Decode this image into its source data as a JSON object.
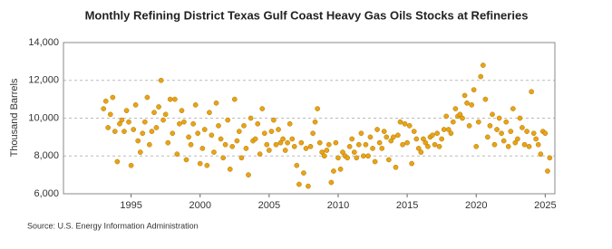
{
  "chart_data": {
    "type": "scatter",
    "title": "Monthly Refining District Texas Gulf Coast Heavy Gas Oils Stocks at Refineries",
    "y_label": "Thousand Barrels",
    "source": "Source: U.S. Energy Information Administration",
    "color": "#e8a317",
    "grid": true,
    "xlim": [
      1990.1,
      2025.7
    ],
    "xticks": [
      1995,
      2000,
      2005,
      2010,
      2015,
      2020,
      2025
    ],
    "ylim": [
      6000,
      14000
    ],
    "yticks": [
      {
        "value": 6000,
        "label": "6,000"
      },
      {
        "value": 8000,
        "label": "8,000"
      },
      {
        "value": 10000,
        "label": "10,000"
      },
      {
        "value": 12000,
        "label": "12,000"
      },
      {
        "value": 14000,
        "label": "14,000"
      }
    ],
    "x": [
      1993.0,
      1993.17,
      1993.33,
      1993.5,
      1993.67,
      1993.83,
      1994.0,
      1994.17,
      1994.33,
      1994.5,
      1994.67,
      1994.83,
      1995.0,
      1995.17,
      1995.33,
      1995.5,
      1995.67,
      1995.83,
      1996.0,
      1996.17,
      1996.33,
      1996.5,
      1996.67,
      1996.83,
      1997.0,
      1997.17,
      1997.33,
      1997.5,
      1997.67,
      1997.83,
      1998.0,
      1998.17,
      1998.33,
      1998.5,
      1998.67,
      1998.83,
      1999.0,
      1999.17,
      1999.33,
      1999.5,
      1999.67,
      1999.83,
      2000.0,
      2000.17,
      2000.33,
      2000.5,
      2000.67,
      2000.83,
      2001.0,
      2001.17,
      2001.33,
      2001.5,
      2001.67,
      2001.83,
      2002.0,
      2002.17,
      2002.33,
      2002.5,
      2002.67,
      2002.83,
      2003.0,
      2003.17,
      2003.33,
      2003.5,
      2003.67,
      2003.83,
      2004.0,
      2004.17,
      2004.33,
      2004.5,
      2004.67,
      2004.83,
      2005.0,
      2005.17,
      2005.33,
      2005.5,
      2005.67,
      2005.83,
      2006.0,
      2006.17,
      2006.33,
      2006.5,
      2006.67,
      2006.83,
      2007.0,
      2007.17,
      2007.33,
      2007.5,
      2007.67,
      2007.83,
      2008.0,
      2008.17,
      2008.33,
      2008.5,
      2008.67,
      2008.83,
      2009.0,
      2009.17,
      2009.33,
      2009.5,
      2009.67,
      2009.83,
      2010.0,
      2010.17,
      2010.33,
      2010.5,
      2010.67,
      2010.83,
      2011.0,
      2011.17,
      2011.33,
      2011.5,
      2011.67,
      2011.83,
      2012.0,
      2012.17,
      2012.33,
      2012.5,
      2012.67,
      2012.83,
      2013.0,
      2013.17,
      2013.33,
      2013.5,
      2013.67,
      2013.83,
      2014.0,
      2014.17,
      2014.33,
      2014.5,
      2014.67,
      2014.83,
      2015.0,
      2015.17,
      2015.33,
      2015.5,
      2015.67,
      2015.83,
      2016.0,
      2016.17,
      2016.33,
      2016.5,
      2016.67,
      2016.83,
      2017.0,
      2017.17,
      2017.33,
      2017.5,
      2017.67,
      2017.83,
      2018.0,
      2018.17,
      2018.33,
      2018.5,
      2018.67,
      2018.83,
      2019.0,
      2019.17,
      2019.33,
      2019.5,
      2019.67,
      2019.83,
      2020.0,
      2020.17,
      2020.33,
      2020.5,
      2020.67,
      2020.83,
      2021.0,
      2021.17,
      2021.33,
      2021.5,
      2021.67,
      2021.83,
      2022.0,
      2022.17,
      2022.33,
      2022.5,
      2022.67,
      2022.83,
      2023.0,
      2023.17,
      2023.33,
      2023.5,
      2023.67,
      2023.83,
      2024.0,
      2024.17,
      2024.33,
      2024.5,
      2024.67,
      2024.83,
      2025.0,
      2025.17,
      2025.33
    ],
    "values": [
      10500,
      10900,
      9500,
      10200,
      11100,
      9300,
      7700,
      9700,
      9900,
      9300,
      10400,
      9800,
      7500,
      9400,
      10700,
      8800,
      8200,
      9200,
      9800,
      11100,
      8600,
      9300,
      10300,
      9500,
      10600,
      12000,
      9900,
      10200,
      8700,
      11000,
      9200,
      11000,
      8100,
      9700,
      10400,
      9800,
      7800,
      9000,
      8600,
      9700,
      10700,
      9200,
      7600,
      8400,
      9400,
      7500,
      10300,
      9100,
      8200,
      10800,
      9600,
      8900,
      7900,
      8600,
      9900,
      7300,
      8500,
      11000,
      8800,
      9300,
      7900,
      9600,
      8400,
      7000,
      10000,
      8800,
      8900,
      9700,
      8100,
      10500,
      9200,
      8600,
      8300,
      9300,
      9900,
      8600,
      9400,
      8700,
      8900,
      8300,
      8700,
      9700,
      8900,
      8500,
      7500,
      6500,
      8700,
      7100,
      8400,
      6400,
      8500,
      9200,
      9800,
      10500,
      8700,
      8200,
      8000,
      8300,
      8600,
      6600,
      7200,
      8700,
      7900,
      7300,
      8200,
      8000,
      7900,
      8500,
      8900,
      8200,
      7900,
      8600,
      9200,
      8000,
      8600,
      8000,
      9000,
      8400,
      7700,
      9400,
      8700,
      8400,
      9300,
      9000,
      7800,
      8800,
      9000,
      7400,
      9100,
      9800,
      8600,
      9700,
      8700,
      9600,
      7600,
      9300,
      8900,
      8400,
      8200,
      8900,
      8700,
      8500,
      9000,
      9100,
      8600,
      9200,
      8500,
      8900,
      9400,
      10100,
      9400,
      9200,
      9800,
      10500,
      10100,
      10200,
      10000,
      11200,
      10800,
      9600,
      10700,
      11500,
      8500,
      9800,
      12200,
      12800,
      11000,
      9000,
      9600,
      10200,
      8600,
      9400,
      10000,
      9200,
      8800,
      9800,
      8500,
      9300,
      10500,
      8700,
      8900,
      10000,
      9500,
      8600,
      9300,
      8500,
      11400,
      9200,
      8900,
      8600,
      8100,
      9300,
      9200,
      7200,
      7900
    ]
  }
}
